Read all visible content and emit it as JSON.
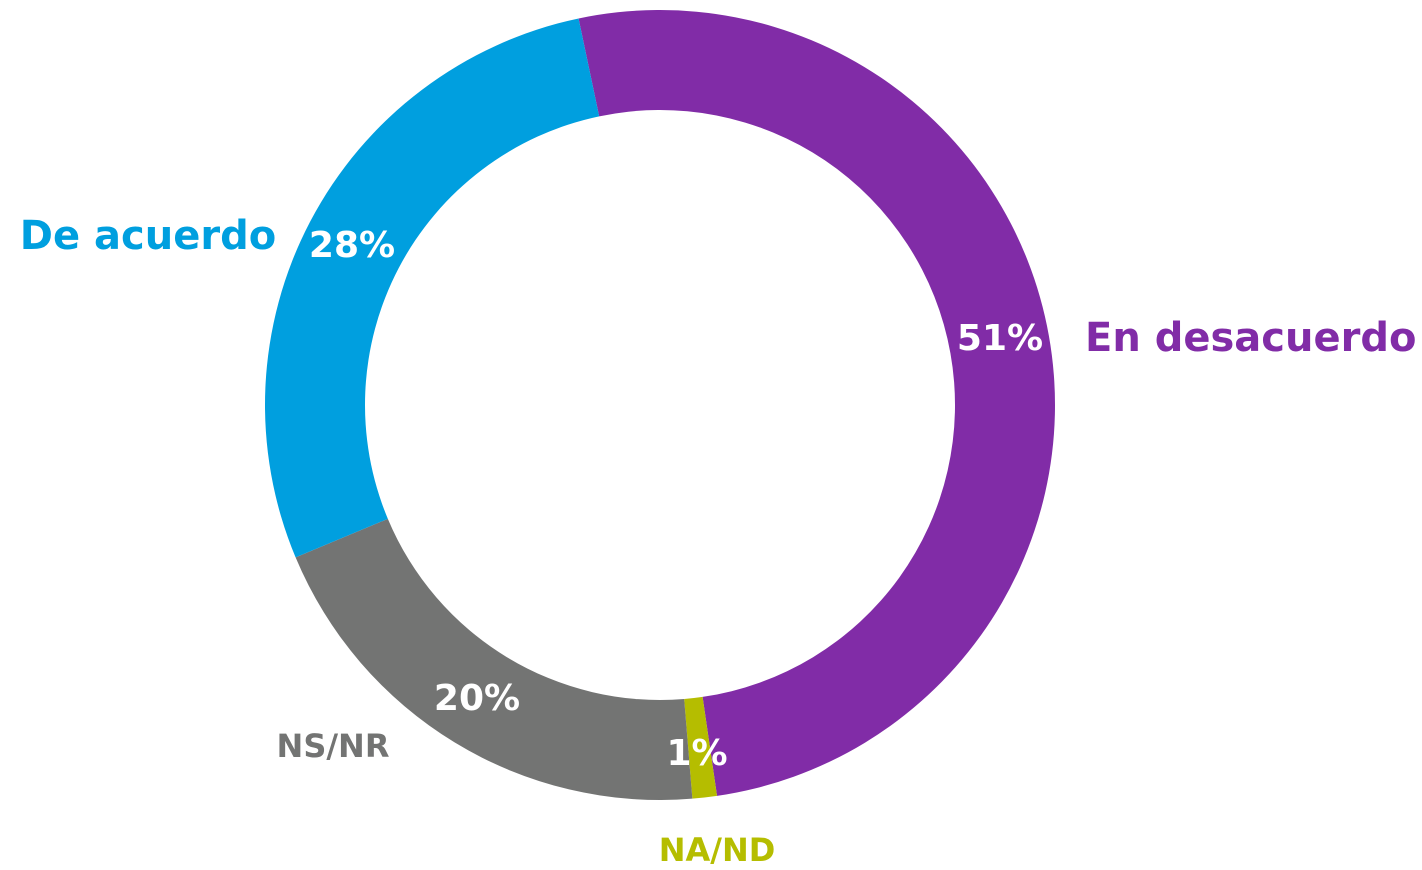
{
  "chart_data": {
    "type": "donut",
    "categories": [
      "En desacuerdo",
      "NA/ND",
      "NS/NR",
      "De acuerdo"
    ],
    "values": [
      51,
      1,
      20,
      28
    ],
    "value_labels": [
      "51%",
      "1%",
      "20%",
      "28%"
    ],
    "colors": [
      "#812ca7",
      "#b5bd00",
      "#737473",
      "#009fdf"
    ]
  }
}
